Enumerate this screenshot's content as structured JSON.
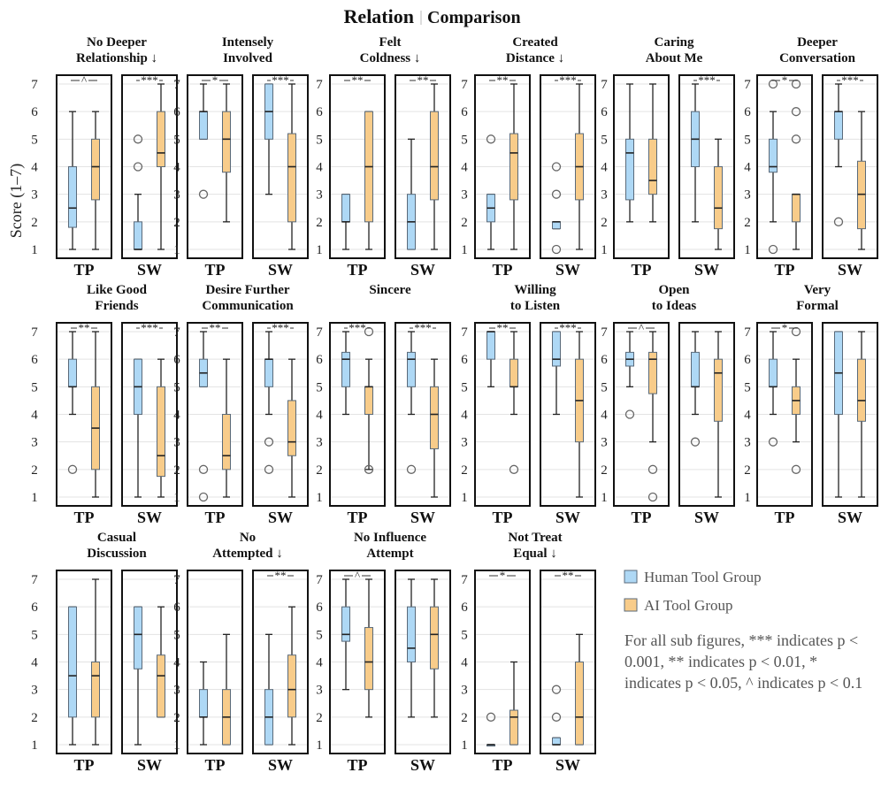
{
  "chart_data": {
    "type": "boxplot",
    "title_part1": "Relation",
    "title_part2": "Comparison",
    "ylabel": "Score (1–7)",
    "ylim": [
      1,
      7
    ],
    "yticks": [
      "1",
      "2",
      "3",
      "4",
      "5",
      "6",
      "7"
    ],
    "groups": [
      "TP",
      "SW"
    ],
    "legend": [
      {
        "label": "Human Tool Group",
        "color": "#aed8f5"
      },
      {
        "label": "AI Tool Group",
        "color": "#f8cc8a"
      }
    ],
    "note": "For all sub figures, *** indicates p < 0.001, ** indicates p < 0.01, * indicates p < 0.05, ^ indicates p < 0.1",
    "colors": {
      "human": "#aed8f5",
      "ai": "#f8cc8a",
      "edge": "#5a6a7a",
      "frame": "#111111",
      "grid": "#e3e3e3"
    },
    "panels": [
      {
        "title1": "No Deeper",
        "title2": "Relationship ↓",
        "TP": {
          "sig": "^",
          "human": {
            "q1": 1.8,
            "med": 2.5,
            "q3": 4,
            "lo": 1,
            "hi": 6,
            "out": []
          },
          "ai": {
            "q1": 2.8,
            "med": 4,
            "q3": 5,
            "lo": 1,
            "hi": 6,
            "out": []
          }
        },
        "SW": {
          "sig": "***",
          "human": {
            "q1": 1,
            "med": 1,
            "q3": 2,
            "lo": 1,
            "hi": 3,
            "out": [
              4,
              5
            ]
          },
          "ai": {
            "q1": 4,
            "med": 4.5,
            "q3": 6,
            "lo": 1,
            "hi": 7,
            "out": []
          }
        }
      },
      {
        "title1": "Intensely",
        "title2": "Involved",
        "TP": {
          "sig": "*",
          "human": {
            "q1": 5,
            "med": 6,
            "q3": 6,
            "lo": 5,
            "hi": 7,
            "out": [
              3
            ]
          },
          "ai": {
            "q1": 3.8,
            "med": 5,
            "q3": 6,
            "lo": 2,
            "hi": 7,
            "out": []
          }
        },
        "SW": {
          "sig": "***",
          "human": {
            "q1": 5,
            "med": 6,
            "q3": 7,
            "lo": 3,
            "hi": 7,
            "out": []
          },
          "ai": {
            "q1": 2,
            "med": 4,
            "q3": 5.2,
            "lo": 1,
            "hi": 7,
            "out": []
          }
        }
      },
      {
        "title1": "Felt",
        "title2": "Coldness ↓",
        "TP": {
          "sig": "**",
          "human": {
            "q1": 2,
            "med": 2,
            "q3": 3,
            "lo": 1,
            "hi": 3,
            "out": []
          },
          "ai": {
            "q1": 2,
            "med": 4,
            "q3": 6,
            "lo": 1,
            "hi": 6,
            "out": []
          }
        },
        "SW": {
          "sig": "**",
          "human": {
            "q1": 1,
            "med": 2,
            "q3": 3,
            "lo": 1,
            "hi": 5,
            "out": []
          },
          "ai": {
            "q1": 2.8,
            "med": 4,
            "q3": 6,
            "lo": 1,
            "hi": 7,
            "out": []
          }
        }
      },
      {
        "title1": "Created",
        "title2": "Distance ↓",
        "TP": {
          "sig": "**",
          "human": {
            "q1": 2,
            "med": 2.5,
            "q3": 3,
            "lo": 1,
            "hi": 3,
            "out": [
              5
            ]
          },
          "ai": {
            "q1": 2.8,
            "med": 4.5,
            "q3": 5.2,
            "lo": 1,
            "hi": 7,
            "out": []
          }
        },
        "SW": {
          "sig": "***",
          "human": {
            "q1": 1.75,
            "med": 2,
            "q3": 2,
            "lo": 1.75,
            "hi": 2,
            "out": [
              1,
              3,
              4
            ]
          },
          "ai": {
            "q1": 2.8,
            "med": 4,
            "q3": 5.2,
            "lo": 1,
            "hi": 7,
            "out": []
          }
        }
      },
      {
        "title1": "Caring",
        "title2": "About Me",
        "TP": {
          "sig": "",
          "human": {
            "q1": 2.8,
            "med": 4.5,
            "q3": 5,
            "lo": 2,
            "hi": 7,
            "out": []
          },
          "ai": {
            "q1": 3,
            "med": 3.5,
            "q3": 5,
            "lo": 2,
            "hi": 7,
            "out": []
          }
        },
        "SW": {
          "sig": "***",
          "human": {
            "q1": 4,
            "med": 5,
            "q3": 6,
            "lo": 2,
            "hi": 7,
            "out": []
          },
          "ai": {
            "q1": 1.75,
            "med": 2.5,
            "q3": 4,
            "lo": 1,
            "hi": 5,
            "out": []
          }
        }
      },
      {
        "title1": "Deeper",
        "title2": "Conversation",
        "TP": {
          "sig": "*",
          "human": {
            "q1": 3.8,
            "med": 4,
            "q3": 5,
            "lo": 2,
            "hi": 6,
            "out": [
              1,
              7
            ]
          },
          "ai": {
            "q1": 2,
            "med": 3,
            "q3": 3,
            "lo": 1,
            "hi": 3,
            "out": [
              5,
              6,
              7
            ]
          }
        },
        "SW": {
          "sig": "***",
          "human": {
            "q1": 5,
            "med": 6,
            "q3": 6,
            "lo": 4,
            "hi": 7,
            "out": [
              2
            ]
          },
          "ai": {
            "q1": 1.75,
            "med": 3,
            "q3": 4.2,
            "lo": 1,
            "hi": 6,
            "out": []
          }
        }
      },
      {
        "title1": "Like Good",
        "title2": "Friends",
        "TP": {
          "sig": "**",
          "human": {
            "q1": 5,
            "med": 5,
            "q3": 6,
            "lo": 4,
            "hi": 7,
            "out": [
              2
            ]
          },
          "ai": {
            "q1": 2,
            "med": 3.5,
            "q3": 5,
            "lo": 1,
            "hi": 7,
            "out": []
          }
        },
        "SW": {
          "sig": "***",
          "human": {
            "q1": 4,
            "med": 5,
            "q3": 6,
            "lo": 1,
            "hi": 6,
            "out": []
          },
          "ai": {
            "q1": 1.75,
            "med": 2.5,
            "q3": 5,
            "lo": 1,
            "hi": 6,
            "out": []
          }
        }
      },
      {
        "title1": "Desire Further",
        "title2": "Communication",
        "TP": {
          "sig": "**",
          "human": {
            "q1": 5,
            "med": 5.5,
            "q3": 6,
            "lo": 5,
            "hi": 7,
            "out": [
              1,
              2
            ]
          },
          "ai": {
            "q1": 2,
            "med": 2.5,
            "q3": 4,
            "lo": 1,
            "hi": 6,
            "out": []
          }
        },
        "SW": {
          "sig": "***",
          "human": {
            "q1": 5,
            "med": 6,
            "q3": 6,
            "lo": 4,
            "hi": 7,
            "out": [
              2,
              3
            ]
          },
          "ai": {
            "q1": 2.5,
            "med": 3,
            "q3": 4.5,
            "lo": 1,
            "hi": 6,
            "out": []
          }
        }
      },
      {
        "title1": "Sincere",
        "title2": "",
        "TP": {
          "sig": "***",
          "human": {
            "q1": 5,
            "med": 6,
            "q3": 6.25,
            "lo": 4,
            "hi": 7,
            "out": []
          },
          "ai": {
            "q1": 4,
            "med": 5,
            "q3": 5,
            "lo": 2,
            "hi": 6,
            "out": [
              7,
              2
            ]
          }
        },
        "SW": {
          "sig": "***",
          "human": {
            "q1": 5,
            "med": 6,
            "q3": 6.25,
            "lo": 4,
            "hi": 7,
            "out": [
              2
            ]
          },
          "ai": {
            "q1": 2.75,
            "med": 4,
            "q3": 5,
            "lo": 1,
            "hi": 6,
            "out": []
          }
        }
      },
      {
        "title1": "Willing",
        "title2": "to Listen",
        "TP": {
          "sig": "**",
          "human": {
            "q1": 6,
            "med": 7,
            "q3": 7,
            "lo": 5,
            "hi": 7,
            "out": []
          },
          "ai": {
            "q1": 5,
            "med": 5,
            "q3": 6,
            "lo": 4,
            "hi": 7,
            "out": [
              2
            ]
          }
        },
        "SW": {
          "sig": "***",
          "human": {
            "q1": 5.75,
            "med": 6,
            "q3": 7,
            "lo": 4,
            "hi": 7,
            "out": []
          },
          "ai": {
            "q1": 3,
            "med": 4.5,
            "q3": 6,
            "lo": 1,
            "hi": 7,
            "out": []
          }
        }
      },
      {
        "title1": "Open",
        "title2": "to Ideas",
        "TP": {
          "sig": "^",
          "human": {
            "q1": 5.75,
            "med": 6,
            "q3": 6.25,
            "lo": 5,
            "hi": 7,
            "out": [
              4
            ]
          },
          "ai": {
            "q1": 4.75,
            "med": 6,
            "q3": 6.25,
            "lo": 3,
            "hi": 7,
            "out": [
              1,
              2
            ]
          }
        },
        "SW": {
          "sig": "",
          "human": {
            "q1": 5,
            "med": 5,
            "q3": 6.25,
            "lo": 4,
            "hi": 7,
            "out": [
              3
            ]
          },
          "ai": {
            "q1": 3.75,
            "med": 5.5,
            "q3": 6,
            "lo": 1,
            "hi": 7,
            "out": []
          }
        }
      },
      {
        "title1": "Very",
        "title2": "Formal",
        "TP": {
          "sig": "*",
          "human": {
            "q1": 5,
            "med": 5,
            "q3": 6,
            "lo": 4,
            "hi": 7,
            "out": [
              3
            ]
          },
          "ai": {
            "q1": 4,
            "med": 4.5,
            "q3": 5,
            "lo": 3,
            "hi": 6,
            "out": [
              7,
              2
            ]
          }
        },
        "SW": {
          "sig": "",
          "human": {
            "q1": 4,
            "med": 5.5,
            "q3": 7,
            "lo": 1,
            "hi": 7,
            "out": []
          },
          "ai": {
            "q1": 3.75,
            "med": 4.5,
            "q3": 6,
            "lo": 1,
            "hi": 7,
            "out": []
          }
        }
      },
      {
        "title1": "Casual",
        "title2": "Discussion",
        "TP": {
          "sig": "",
          "human": {
            "q1": 2,
            "med": 3.5,
            "q3": 6,
            "lo": 1,
            "hi": 6,
            "out": []
          },
          "ai": {
            "q1": 2,
            "med": 3.5,
            "q3": 4,
            "lo": 1,
            "hi": 7,
            "out": []
          }
        },
        "SW": {
          "sig": "",
          "human": {
            "q1": 3.75,
            "med": 5,
            "q3": 6,
            "lo": 1,
            "hi": 6,
            "out": []
          },
          "ai": {
            "q1": 2,
            "med": 3.5,
            "q3": 4.25,
            "lo": 2,
            "hi": 6,
            "out": []
          }
        }
      },
      {
        "title1": "No",
        "title2": "Attempted ↓",
        "TP": {
          "sig": "",
          "human": {
            "q1": 2,
            "med": 2,
            "q3": 3,
            "lo": 1,
            "hi": 4,
            "out": []
          },
          "ai": {
            "q1": 1,
            "med": 2,
            "q3": 3,
            "lo": 1,
            "hi": 5,
            "out": []
          }
        },
        "SW": {
          "sig": "**",
          "human": {
            "q1": 1,
            "med": 2,
            "q3": 3,
            "lo": 1,
            "hi": 5,
            "out": []
          },
          "ai": {
            "q1": 2,
            "med": 3,
            "q3": 4.25,
            "lo": 1,
            "hi": 6,
            "out": []
          }
        }
      },
      {
        "title1": "No Influence",
        "title2": "Attempt",
        "TP": {
          "sig": "^",
          "human": {
            "q1": 4.75,
            "med": 5,
            "q3": 6,
            "lo": 3,
            "hi": 7,
            "out": []
          },
          "ai": {
            "q1": 3,
            "med": 4,
            "q3": 5.25,
            "lo": 2,
            "hi": 7,
            "out": []
          }
        },
        "SW": {
          "sig": "",
          "human": {
            "q1": 4,
            "med": 4.5,
            "q3": 6,
            "lo": 2,
            "hi": 7,
            "out": []
          },
          "ai": {
            "q1": 3.75,
            "med": 5,
            "q3": 6,
            "lo": 2,
            "hi": 7,
            "out": []
          }
        }
      },
      {
        "title1": "Not Treat",
        "title2": "Equal ↓",
        "TP": {
          "sig": "*",
          "human": {
            "q1": 1,
            "med": 1,
            "q3": 1,
            "lo": 1,
            "hi": 1,
            "out": [
              2
            ]
          },
          "ai": {
            "q1": 1,
            "med": 2,
            "q3": 2.25,
            "lo": 1,
            "hi": 4,
            "out": []
          }
        },
        "SW": {
          "sig": "**",
          "human": {
            "q1": 1,
            "med": 1,
            "q3": 1.25,
            "lo": 1,
            "hi": 1.25,
            "out": [
              2,
              3
            ]
          },
          "ai": {
            "q1": 1,
            "med": 2,
            "q3": 4,
            "lo": 1,
            "hi": 5,
            "out": []
          }
        }
      }
    ]
  }
}
